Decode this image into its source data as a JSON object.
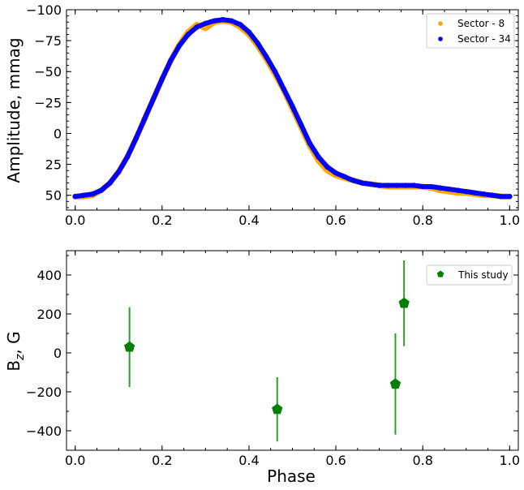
{
  "chart_data": [
    {
      "type": "scatter",
      "title": "",
      "xlabel": "",
      "ylabel": "Amplitude, mmag",
      "xlim": [
        -0.02,
        1.02
      ],
      "ylim": [
        -100,
        62
      ],
      "y_inverted": true,
      "xticks": [
        0.0,
        0.2,
        0.4,
        0.6,
        0.8,
        1.0
      ],
      "xtick_labels": [
        "0.0",
        "0.2",
        "0.4",
        "0.6",
        "0.8",
        "1.0"
      ],
      "yticks": [
        -100,
        -75,
        -50,
        -25,
        0,
        25,
        50
      ],
      "ytick_labels": [
        "−100",
        "−75",
        "−50",
        "−25",
        "0",
        "25",
        "50"
      ],
      "grid": false,
      "legend_position": "top-right",
      "series": [
        {
          "name": "Sector - 8",
          "color": "#ffa500",
          "x": [
            0.0,
            0.02,
            0.04,
            0.06,
            0.08,
            0.1,
            0.12,
            0.14,
            0.16,
            0.18,
            0.2,
            0.22,
            0.24,
            0.26,
            0.28,
            0.3,
            0.32,
            0.34,
            0.36,
            0.38,
            0.4,
            0.42,
            0.44,
            0.46,
            0.48,
            0.5,
            0.52,
            0.54,
            0.56,
            0.58,
            0.6,
            0.62,
            0.64,
            0.66,
            0.68,
            0.7,
            0.72,
            0.74,
            0.76,
            0.78,
            0.8,
            0.82,
            0.84,
            0.86,
            0.88,
            0.9,
            0.92,
            0.94,
            0.96,
            0.98,
            1.0
          ],
          "values": [
            51,
            51,
            50,
            46,
            40,
            31,
            19,
            4,
            -12,
            -28,
            -44,
            -59,
            -72,
            -82,
            -88,
            -85,
            -90,
            -91,
            -90,
            -86,
            -80,
            -71,
            -60,
            -48,
            -35,
            -20,
            -5,
            10,
            22,
            30,
            34,
            36,
            38,
            40,
            41,
            42,
            43,
            43,
            43,
            43,
            43,
            44,
            46,
            47,
            48,
            48,
            49,
            50,
            50,
            51,
            51
          ]
        },
        {
          "name": "Sector - 34",
          "color": "#0000ff",
          "x": [
            0.0,
            0.02,
            0.04,
            0.06,
            0.08,
            0.1,
            0.12,
            0.14,
            0.16,
            0.18,
            0.2,
            0.22,
            0.24,
            0.26,
            0.28,
            0.3,
            0.32,
            0.34,
            0.36,
            0.38,
            0.4,
            0.42,
            0.44,
            0.46,
            0.48,
            0.5,
            0.52,
            0.54,
            0.56,
            0.58,
            0.6,
            0.62,
            0.64,
            0.66,
            0.68,
            0.7,
            0.72,
            0.74,
            0.76,
            0.78,
            0.8,
            0.82,
            0.84,
            0.86,
            0.88,
            0.9,
            0.92,
            0.94,
            0.96,
            0.98,
            1.0
          ],
          "values": [
            51,
            50,
            49,
            46,
            40,
            31,
            19,
            4,
            -12,
            -28,
            -44,
            -59,
            -71,
            -80,
            -86,
            -89,
            -91,
            -92,
            -91,
            -88,
            -82,
            -73,
            -62,
            -50,
            -36,
            -22,
            -7,
            8,
            19,
            27,
            32,
            35,
            38,
            40,
            41,
            42,
            42,
            42,
            42,
            42,
            43,
            43,
            44,
            45,
            46,
            47,
            48,
            49,
            50,
            51,
            51
          ]
        }
      ]
    },
    {
      "type": "scatter",
      "title": "",
      "xlabel": "Phase",
      "ylabel": "B_z, G",
      "xlim": [
        -0.02,
        1.02
      ],
      "ylim": [
        -500,
        525
      ],
      "xticks": [
        0.0,
        0.2,
        0.4,
        0.6,
        0.8,
        1.0
      ],
      "xtick_labels": [
        "0.0",
        "0.2",
        "0.4",
        "0.6",
        "0.8",
        "1.0"
      ],
      "yticks": [
        -400,
        -200,
        0,
        200,
        400
      ],
      "ytick_labels": [
        "−400",
        "−200",
        "0",
        "200",
        "400"
      ],
      "grid": false,
      "legend_position": "top-right",
      "series": [
        {
          "name": "This study",
          "color": "#008000",
          "errorbar_color": "#2ca02c",
          "marker": "pentagon",
          "x": [
            0.125,
            0.465,
            0.737,
            0.757
          ],
          "values": [
            30,
            -290,
            -160,
            255
          ],
          "yerr": [
            205,
            165,
            260,
            220
          ]
        }
      ]
    }
  ]
}
